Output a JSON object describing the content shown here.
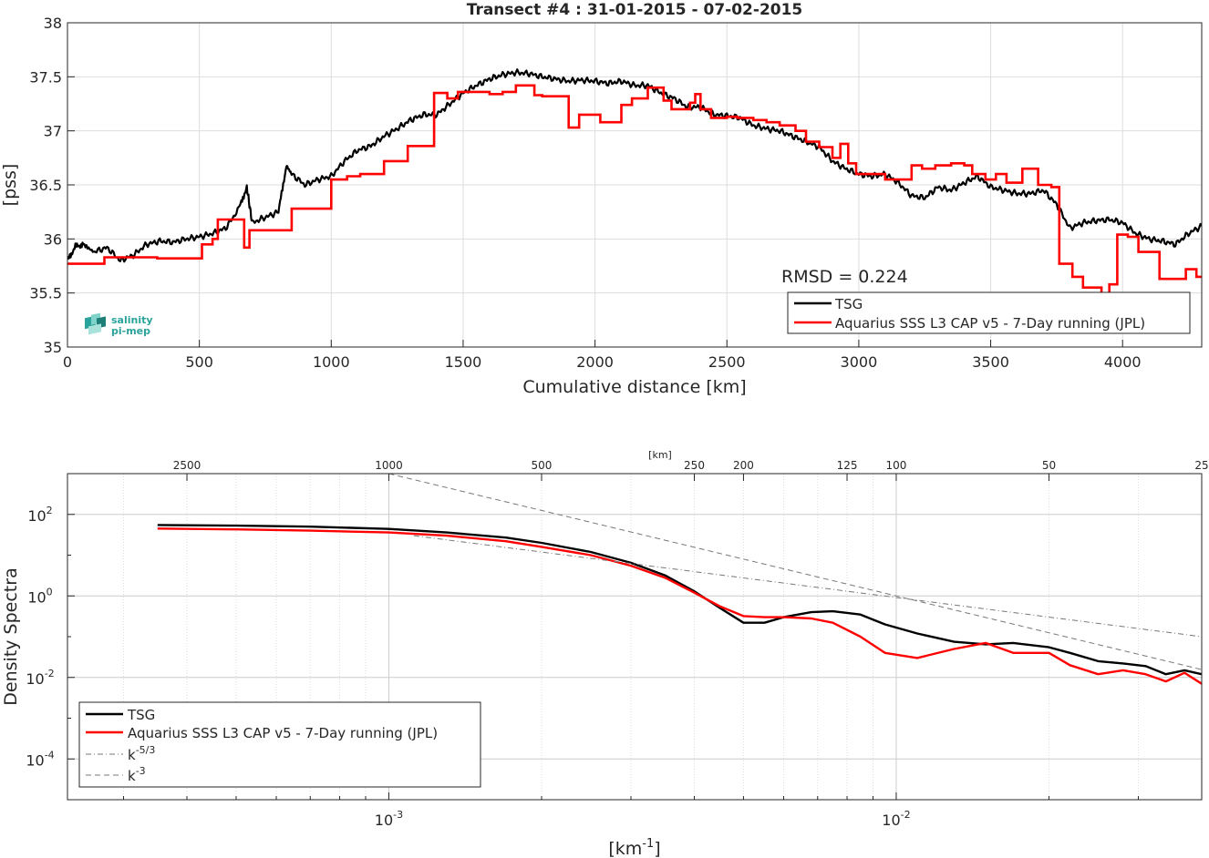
{
  "chart_data": [
    {
      "type": "line",
      "title": "Transect #4 : 31-01-2015 - 07-02-2015",
      "xlabel": "Cumulative distance [km]",
      "ylabel": "[pss]",
      "xlim": [
        0,
        4300
      ],
      "ylim": [
        35,
        38
      ],
      "xticks": [
        "0",
        "500",
        "1000",
        "1500",
        "2000",
        "2500",
        "3000",
        "3500",
        "4000"
      ],
      "yticks": [
        "35",
        "35.5",
        "36",
        "36.5",
        "37",
        "37.5",
        "38"
      ],
      "grid": true,
      "legend_position": "bottom-right",
      "annotation": "RMSD = 0.224",
      "logo": {
        "line1": "salinity",
        "line2": "pi-mep",
        "color": "#2aa39a"
      },
      "series": [
        {
          "name": "TSG",
          "color": "#000000",
          "x": [
            0,
            30,
            60,
            100,
            150,
            200,
            250,
            300,
            350,
            400,
            450,
            500,
            550,
            600,
            650,
            680,
            700,
            750,
            800,
            830,
            850,
            900,
            950,
            1000,
            1050,
            1100,
            1150,
            1200,
            1250,
            1300,
            1350,
            1400,
            1450,
            1500,
            1550,
            1600,
            1650,
            1700,
            1750,
            1800,
            1850,
            1900,
            1950,
            2000,
            2050,
            2100,
            2150,
            2200,
            2250,
            2300,
            2350,
            2400,
            2450,
            2500,
            2550,
            2600,
            2650,
            2700,
            2750,
            2800,
            2850,
            2900,
            2950,
            3000,
            3050,
            3100,
            3150,
            3200,
            3250,
            3300,
            3350,
            3400,
            3450,
            3500,
            3550,
            3600,
            3650,
            3700,
            3750,
            3800,
            3850,
            3900,
            3950,
            4000,
            4050,
            4100,
            4150,
            4200,
            4250,
            4300
          ],
          "values": [
            35.8,
            35.93,
            35.95,
            35.88,
            35.92,
            35.8,
            35.85,
            35.95,
            35.98,
            35.97,
            36.0,
            36.02,
            36.05,
            36.1,
            36.28,
            36.48,
            36.15,
            36.2,
            36.25,
            36.68,
            36.6,
            36.5,
            36.55,
            36.58,
            36.72,
            36.82,
            36.86,
            36.95,
            37.02,
            37.1,
            37.15,
            37.15,
            37.25,
            37.35,
            37.42,
            37.48,
            37.52,
            37.54,
            37.53,
            37.5,
            37.48,
            37.46,
            37.47,
            37.46,
            37.44,
            37.46,
            37.42,
            37.42,
            37.35,
            37.3,
            37.22,
            37.22,
            37.15,
            37.14,
            37.12,
            37.05,
            37.02,
            37.0,
            36.95,
            36.9,
            36.85,
            36.72,
            36.65,
            36.6,
            36.58,
            36.6,
            36.52,
            36.4,
            36.38,
            36.48,
            36.45,
            36.52,
            36.58,
            36.48,
            36.45,
            36.42,
            36.42,
            36.45,
            36.32,
            36.1,
            36.15,
            36.17,
            36.18,
            36.15,
            36.05,
            36.0,
            35.98,
            35.95,
            36.05,
            36.12
          ]
        },
        {
          "name": "Aquarius SSS L3 CAP v5 - 7-Day running (JPL)",
          "color": "#ff0000",
          "x": [
            0,
            140,
            340,
            510,
            550,
            570,
            670,
            690,
            710,
            850,
            870,
            1000,
            1060,
            1110,
            1200,
            1290,
            1390,
            1440,
            1480,
            1600,
            1650,
            1700,
            1770,
            1800,
            1900,
            1940,
            2020,
            2100,
            2140,
            2200,
            2260,
            2290,
            2360,
            2380,
            2400,
            2440,
            2500,
            2540,
            2600,
            2650,
            2700,
            2760,
            2800,
            2850,
            2900,
            2930,
            2960,
            2990,
            3060,
            3100,
            3200,
            3240,
            3290,
            3350,
            3400,
            3430,
            3480,
            3520,
            3560,
            3620,
            3680,
            3730,
            3760,
            3810,
            3850,
            3920,
            3950,
            3980,
            4020,
            4060,
            4100,
            4140,
            4200,
            4240,
            4280,
            4300
          ],
          "values": [
            35.77,
            35.83,
            35.82,
            35.95,
            36.0,
            36.18,
            35.92,
            36.08,
            36.08,
            36.28,
            36.28,
            36.55,
            36.58,
            36.6,
            36.72,
            36.86,
            37.35,
            37.3,
            37.36,
            37.34,
            37.36,
            37.42,
            37.33,
            37.32,
            37.03,
            37.15,
            37.08,
            37.24,
            37.3,
            37.4,
            37.28,
            37.2,
            37.26,
            37.34,
            37.2,
            37.12,
            37.13,
            37.12,
            37.1,
            37.08,
            37.05,
            37.0,
            36.9,
            36.85,
            36.75,
            36.88,
            36.7,
            36.6,
            36.6,
            36.55,
            36.68,
            36.65,
            36.68,
            36.7,
            36.68,
            36.6,
            36.55,
            36.6,
            36.52,
            36.65,
            36.5,
            36.48,
            35.77,
            35.65,
            35.55,
            35.45,
            35.58,
            36.04,
            36.02,
            35.88,
            35.88,
            35.63,
            35.63,
            35.72,
            35.65,
            35.65
          ]
        }
      ]
    },
    {
      "type": "line",
      "xlabel": "[km^-1]",
      "ylabel": "Density Spectra",
      "xscale": "log",
      "yscale": "log",
      "xlim": [
        0.0002326,
        0.04
      ],
      "ylim": [
        1e-05,
        1000
      ],
      "xticks": [
        "10^-3",
        "10^-2"
      ],
      "yticks": [
        "10^-4",
        "10^-2",
        "10^0",
        "10^2"
      ],
      "top_axis_label": "[km]",
      "top_ticks": [
        "2500",
        "1000",
        "500",
        "250",
        "200",
        "125",
        "100",
        "50",
        "25"
      ],
      "grid": true,
      "legend_position": "bottom-left",
      "series": [
        {
          "name": "TSG",
          "color": "#000000",
          "x": [
            0.00035,
            0.0005,
            0.0007,
            0.001,
            0.0013,
            0.0017,
            0.002,
            0.0025,
            0.003,
            0.0035,
            0.004,
            0.0045,
            0.005,
            0.0055,
            0.006,
            0.0068,
            0.0075,
            0.0085,
            0.0095,
            0.011,
            0.013,
            0.015,
            0.017,
            0.02,
            0.022,
            0.025,
            0.028,
            0.031,
            0.034,
            0.037,
            0.04
          ],
          "values": [
            55,
            53,
            50,
            44,
            36,
            27,
            20,
            12,
            6.5,
            3.2,
            1.3,
            0.5,
            0.22,
            0.22,
            0.3,
            0.4,
            0.42,
            0.35,
            0.2,
            0.12,
            0.075,
            0.065,
            0.07,
            0.055,
            0.04,
            0.025,
            0.022,
            0.019,
            0.012,
            0.015,
            0.012
          ]
        },
        {
          "name": "Aquarius SSS L3 CAP v5 - 7-Day running (JPL)",
          "color": "#ff0000",
          "x": [
            0.00035,
            0.0005,
            0.0007,
            0.001,
            0.0013,
            0.0017,
            0.002,
            0.0025,
            0.003,
            0.0035,
            0.004,
            0.0045,
            0.005,
            0.0055,
            0.006,
            0.0068,
            0.0075,
            0.0085,
            0.0095,
            0.011,
            0.013,
            0.015,
            0.017,
            0.02,
            0.022,
            0.025,
            0.028,
            0.031,
            0.034,
            0.037,
            0.04
          ],
          "values": [
            45,
            43,
            40,
            36,
            30,
            22,
            16,
            10,
            5.5,
            2.8,
            1.2,
            0.55,
            0.32,
            0.3,
            0.3,
            0.28,
            0.22,
            0.1,
            0.04,
            0.03,
            0.05,
            0.07,
            0.04,
            0.04,
            0.02,
            0.012,
            0.015,
            0.012,
            0.008,
            0.013,
            0.007
          ]
        },
        {
          "name": "k^-5/3",
          "color": "#777777",
          "dash": "dashdot",
          "x": [
            0.00112,
            0.04
          ],
          "values": [
            30,
            0.1
          ]
        },
        {
          "name": "k^-3",
          "color": "#777777",
          "dash": "dashed",
          "x": [
            0.001,
            0.04
          ],
          "values": [
            1000,
            0.015625
          ]
        }
      ]
    }
  ]
}
